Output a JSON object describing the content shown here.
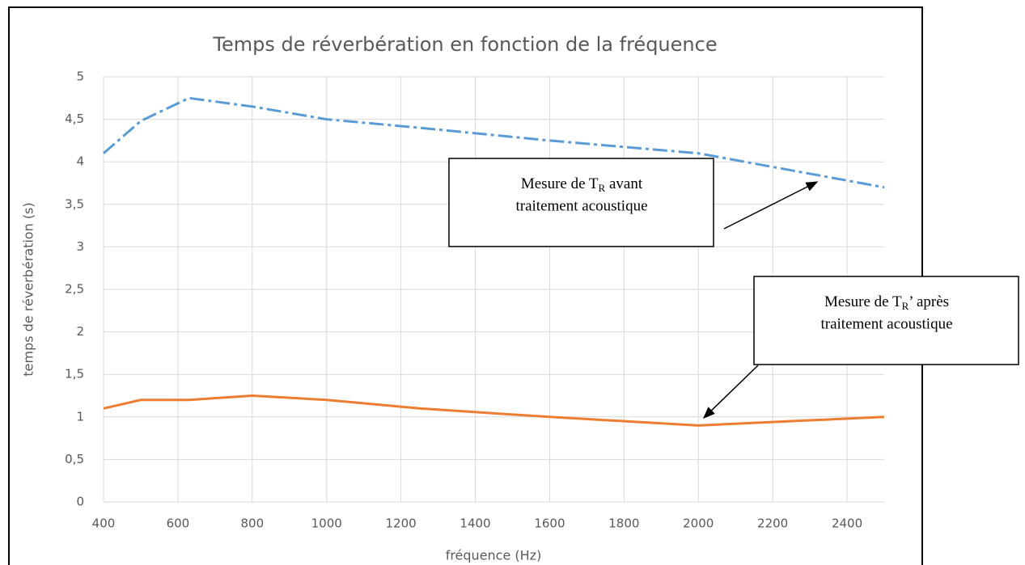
{
  "chart_data": {
    "type": "line",
    "title": "Temps  de réverbération en fonction de la fréquence",
    "xlabel": "fréquence (Hz)",
    "ylabel": "temps de réverbération (s)",
    "x": [
      400,
      500,
      630,
      800,
      1000,
      1250,
      1600,
      2000,
      2500
    ],
    "series": [
      {
        "color": "#5b9bd5",
        "dash": "dashdot",
        "values": [
          4.1,
          4.48,
          4.75,
          4.65,
          4.5,
          4.4,
          4.25,
          4.1,
          3.7
        ]
      },
      {
        "color": "#ed7d31",
        "dash": "solid",
        "values": [
          1.1,
          1.2,
          1.2,
          1.25,
          1.2,
          1.1,
          1.0,
          0.9,
          1.0
        ]
      }
    ],
    "xlim": [
      400,
      2500
    ],
    "xticks": [
      400,
      600,
      800,
      1000,
      1200,
      1400,
      1600,
      1800,
      2000,
      2200,
      2400
    ],
    "ylim": [
      0,
      5
    ],
    "yticks": [
      0,
      {
        "value": 0.5,
        "label": "0,5"
      },
      1,
      {
        "value": 1.5,
        "label": "1,5"
      },
      2,
      {
        "value": 2.5,
        "label": "2,5"
      },
      3,
      {
        "value": 3.5,
        "label": "3,5"
      },
      4,
      {
        "value": 4.5,
        "label": "4,5"
      },
      5
    ],
    "grid": true,
    "annotations": [
      {
        "pre": "Mesure de T",
        "sub": "R",
        "post": " avant",
        "line2": "traitement acoustique"
      },
      {
        "pre": "Mesure de T",
        "sub": "R",
        "post": "’ après",
        "line2": "traitement acoustique"
      }
    ]
  }
}
